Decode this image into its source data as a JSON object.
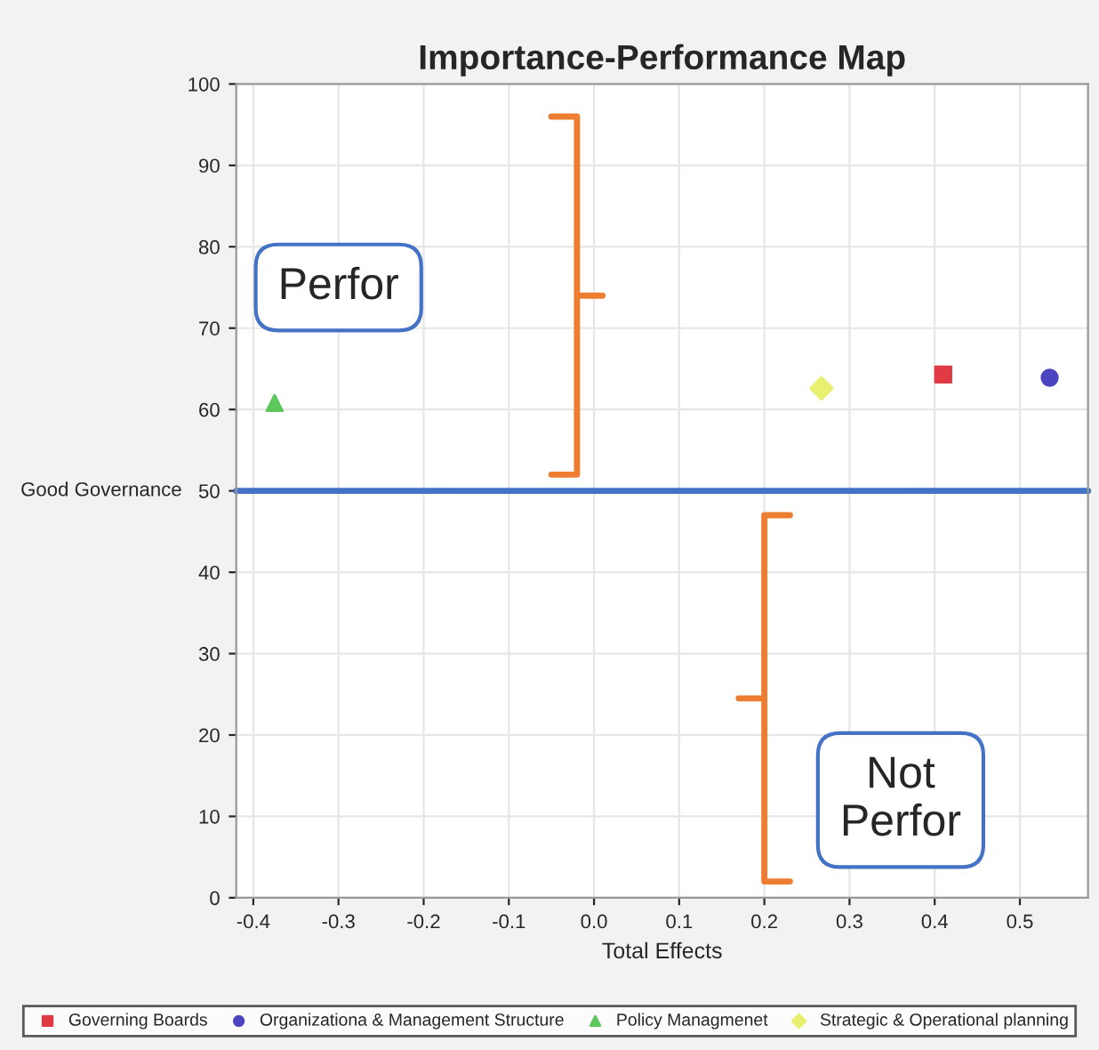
{
  "chart_data": {
    "type": "scatter",
    "title": "Importance-Performance Map",
    "xlabel": "Total Effects",
    "series": [
      {
        "name": "Governing Boards",
        "color": "#e03a44",
        "marker": "square",
        "x": [
          0.41
        ],
        "values": [
          64.3
        ]
      },
      {
        "name": "Organizationa & Management Structure",
        "color": "#4a44c0",
        "marker": "circle",
        "x": [
          0.535
        ],
        "values": [
          63.9
        ]
      },
      {
        "name": "Policy Managmenet",
        "color": "#5cc85c",
        "marker": "triangle",
        "x": [
          -0.375
        ],
        "values": [
          60.8
        ]
      },
      {
        "name": "Strategic & Operational planning",
        "color": "#e8f070",
        "marker": "diamond",
        "x": [
          0.267
        ],
        "values": [
          62.6
        ]
      }
    ],
    "xlim": [
      -0.42,
      0.58
    ],
    "xticks": [
      {
        "value": -0.4,
        "label": "-0.4"
      },
      {
        "value": -0.3,
        "label": "-0.3"
      },
      {
        "value": -0.2,
        "label": "-0.2"
      },
      {
        "value": -0.1,
        "label": "-0.1"
      },
      {
        "value": 0,
        "label": "0.0"
      },
      {
        "value": 0.1,
        "label": "0.1"
      },
      {
        "value": 0.2,
        "label": "0.2"
      },
      {
        "value": 0.3,
        "label": "0.3"
      },
      {
        "value": 0.4,
        "label": "0.4"
      },
      {
        "value": 0.5,
        "label": "0.5"
      }
    ],
    "ylim": [
      0,
      100
    ],
    "yticks": [
      0,
      10,
      20,
      30,
      40,
      50,
      60,
      70,
      80,
      90,
      100
    ],
    "ref_lines": [
      {
        "axis": "y",
        "value": 50,
        "label": "Good Governance",
        "color": "#4472c4"
      }
    ],
    "annotations": [
      "Perfor",
      "Not\nPerfor"
    ],
    "grid": true,
    "legend": "bottom"
  }
}
